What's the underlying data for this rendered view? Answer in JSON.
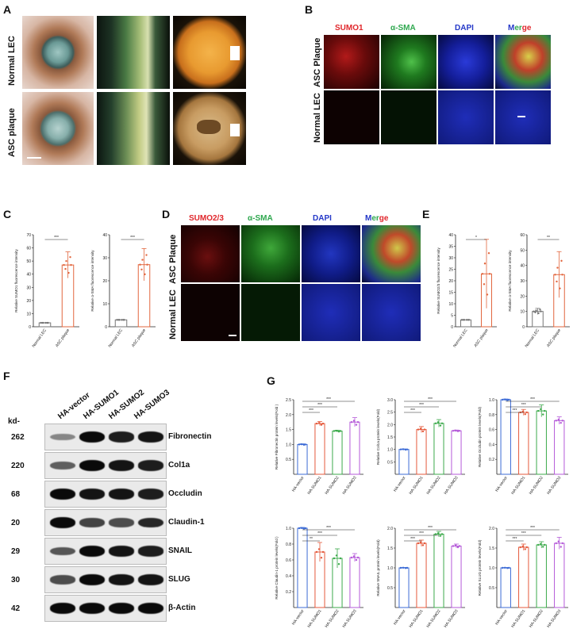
{
  "panels": {
    "A": "A",
    "B": "B",
    "C": "C",
    "D": "D",
    "E": "E",
    "F": "F",
    "G": "G"
  },
  "panelA": {
    "rows": [
      "Normal LEC",
      "ASC plaque"
    ]
  },
  "panelB": {
    "channels": [
      "SUMO1",
      "α-SMA",
      "DAPI",
      "Merge"
    ],
    "rows": [
      "ASC Plaque",
      "Normal LEC"
    ]
  },
  "panelD": {
    "channels": [
      "SUMO2/3",
      "α-SMA",
      "DAPI",
      "Merge"
    ],
    "rows": [
      "ASC Plaque",
      "Normal LEC"
    ]
  },
  "colors": {
    "red": "#e0262b",
    "green": "#2fa84f",
    "blue": "#2438c8",
    "orangebar": "#e2673f",
    "vector": "#3c6bd6",
    "sumo1": "#e55a3c",
    "sumo2": "#3caa4b",
    "sumo3": "#b55ad9"
  },
  "panelF": {
    "kd": "kd-",
    "lanes": [
      "HA-vector",
      "HA-SUMO1",
      "HA-SUMO2",
      "HA-SUMO3"
    ],
    "blots": [
      {
        "kd": "262",
        "name": "Fibronectin",
        "intensity": [
          0.35,
          1,
          0.9,
          0.95
        ]
      },
      {
        "kd": "220",
        "name": "Col1a",
        "intensity": [
          0.55,
          1,
          0.95,
          0.9
        ]
      },
      {
        "kd": "68",
        "name": "Occludin",
        "intensity": [
          1,
          0.95,
          0.95,
          0.9
        ]
      },
      {
        "kd": "20",
        "name": "Claudin-1",
        "intensity": [
          1,
          0.7,
          0.65,
          0.85
        ]
      },
      {
        "kd": "29",
        "name": "SNAIL",
        "intensity": [
          0.6,
          1,
          0.95,
          0.9
        ]
      },
      {
        "kd": "30",
        "name": "SLUG",
        "intensity": [
          0.65,
          1,
          0.95,
          0.95
        ]
      },
      {
        "kd": "42",
        "name": "β-Actin",
        "intensity": [
          1,
          1,
          1,
          1
        ]
      }
    ]
  },
  "chart_data": [
    {
      "id": "C1",
      "type": "bar",
      "categories": [
        "Normal LEC",
        "ASC plaque"
      ],
      "values": [
        3,
        47
      ],
      "errors": [
        0,
        10
      ],
      "ylabel": "Relative SUMO1 fluorescence intensity",
      "ylim": [
        0,
        70
      ],
      "yticks": [
        0,
        10,
        20,
        30,
        40,
        50,
        60,
        70
      ],
      "sig": "***"
    },
    {
      "id": "C2",
      "type": "bar",
      "categories": [
        "Normal LEC",
        "ASC plaque"
      ],
      "values": [
        3,
        27
      ],
      "errors": [
        0,
        7
      ],
      "ylabel": "Relative α-SMA fluorescence intensity",
      "ylim": [
        0,
        40
      ],
      "yticks": [
        0,
        10,
        20,
        30,
        40
      ],
      "sig": "***"
    },
    {
      "id": "E1",
      "type": "bar",
      "categories": [
        "Normal LEC",
        "ASC plaque"
      ],
      "values": [
        3,
        23
      ],
      "errors": [
        0,
        15
      ],
      "ylabel": "Relative SUMO2/3 fluorescence intensity",
      "ylim": [
        0,
        40
      ],
      "yticks": [
        0,
        5,
        10,
        15,
        20,
        25,
        30,
        35,
        40
      ],
      "sig": "*"
    },
    {
      "id": "E2",
      "type": "bar",
      "categories": [
        "Normal LEC",
        "ASC plaque"
      ],
      "values": [
        10,
        34
      ],
      "errors": [
        2,
        15
      ],
      "ylabel": "Relative α-SMA fluorescence intensity",
      "ylim": [
        0,
        60
      ],
      "yticks": [
        0,
        10,
        20,
        30,
        40,
        50,
        60
      ],
      "sig": "**"
    },
    {
      "id": "G1",
      "type": "bar",
      "categories": [
        "HA-vector",
        "HA-SUMO1",
        "HA-SUMO2",
        "HA-SUMO3"
      ],
      "values": [
        1.0,
        1.7,
        1.45,
        1.75
      ],
      "errors": [
        0.02,
        0.07,
        0.03,
        0.15
      ],
      "ylabel": "Relative Fibronectin protein levels(Fold )",
      "ylim": [
        0,
        2.5
      ],
      "yticks": [
        0.5,
        1.0,
        1.5,
        2.0,
        2.5
      ],
      "sigs": [
        "***",
        "***",
        "***"
      ]
    },
    {
      "id": "G2",
      "type": "bar",
      "categories": [
        "HA-vector",
        "HA-SUMO1",
        "HA-SUMO2",
        "HA-SUMO3"
      ],
      "values": [
        1.0,
        1.8,
        2.05,
        1.75
      ],
      "errors": [
        0.02,
        0.12,
        0.15,
        0.03
      ],
      "ylabel": "Relative Col1a protein levels(Fold)",
      "ylim": [
        0,
        3.0
      ],
      "yticks": [
        0.5,
        1.0,
        1.5,
        2.0,
        2.5,
        3.0
      ],
      "sigs": [
        "***",
        "***",
        "***"
      ]
    },
    {
      "id": "G3",
      "type": "bar",
      "categories": [
        "HA-vector",
        "HA-SUMO1",
        "HA-SUMO2",
        "HA-SUMO3"
      ],
      "values": [
        1.0,
        0.83,
        0.85,
        0.72
      ],
      "errors": [
        0.01,
        0.04,
        0.08,
        0.05
      ],
      "ylabel": "Relative Occludin protein levels(Fold)",
      "ylim": [
        0,
        1.0
      ],
      "yticks": [
        0.2,
        0.4,
        0.6,
        0.8,
        1.0
      ],
      "sigs": [
        "***",
        "***",
        "***"
      ]
    },
    {
      "id": "G4",
      "type": "bar",
      "categories": [
        "HA-vector",
        "HA-SUMO1",
        "HA-SUMO2",
        "HA-SUMO3"
      ],
      "values": [
        1.0,
        0.7,
        0.62,
        0.63
      ],
      "errors": [
        0.01,
        0.12,
        0.12,
        0.05
      ],
      "ylabel": "Relative Claudin-1 protein levels(Fold )",
      "ylim": [
        0,
        1.0
      ],
      "yticks": [
        0.2,
        0.4,
        0.6,
        0.8,
        1.0
      ],
      "sigs": [
        "**",
        "***",
        "***"
      ]
    },
    {
      "id": "G5",
      "type": "bar",
      "categories": [
        "HA-vector",
        "HA-SUMO1",
        "HA-SUMO2",
        "HA-SUMO3"
      ],
      "values": [
        1.0,
        1.62,
        1.85,
        1.55
      ],
      "errors": [
        0.01,
        0.08,
        0.07,
        0.05
      ],
      "ylabel": "Relative SNAIL protein levels(Fold)",
      "ylim": [
        0,
        2.0
      ],
      "yticks": [
        0.5,
        1.0,
        1.5,
        2.0
      ],
      "sigs": [
        "***",
        "***",
        "***"
      ]
    },
    {
      "id": "G6",
      "type": "bar",
      "categories": [
        "HA-vector",
        "HA-SUMO1",
        "HA-SUMO2",
        "HA-SUMO3"
      ],
      "values": [
        1.0,
        1.52,
        1.58,
        1.62
      ],
      "errors": [
        0.01,
        0.08,
        0.08,
        0.15
      ],
      "ylabel": "Relative SLUG protein levels(Fold)",
      "ylim": [
        0,
        2.0
      ],
      "yticks": [
        0.5,
        1.0,
        1.5,
        2.0
      ],
      "sigs": [
        "***",
        "***",
        "***"
      ]
    }
  ]
}
